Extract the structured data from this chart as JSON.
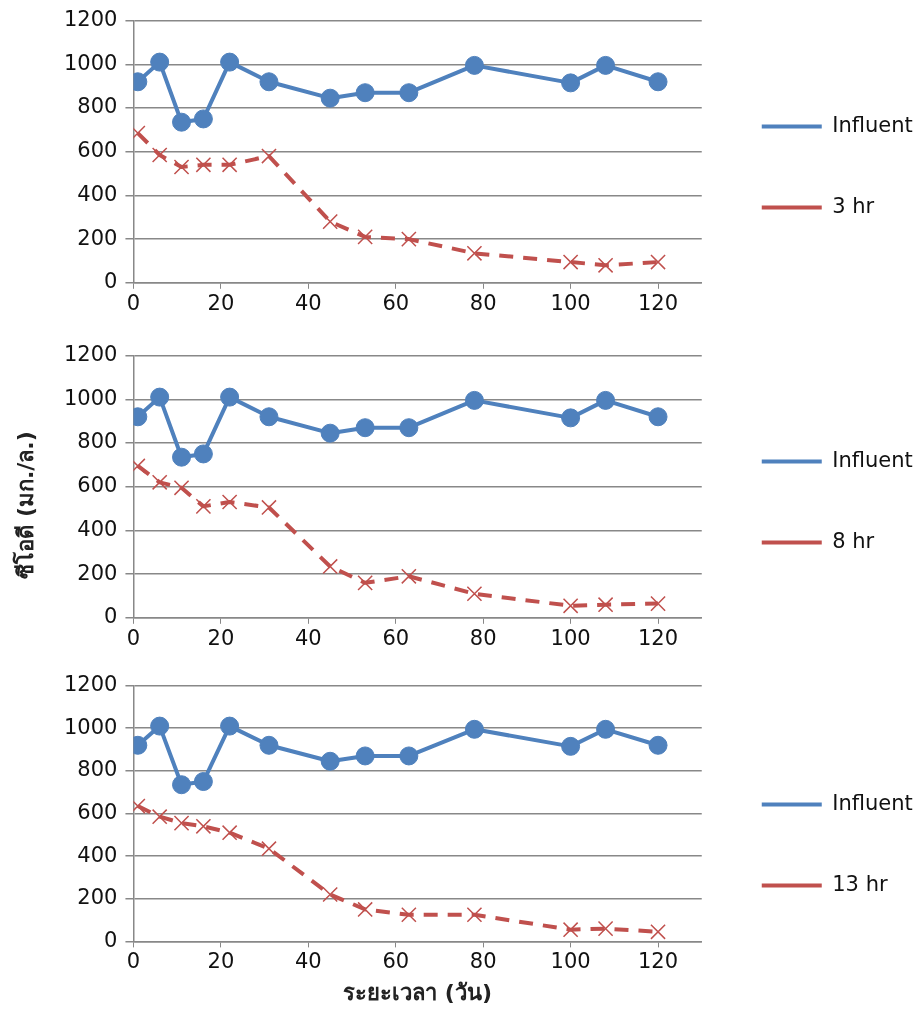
{
  "chart_data": [
    {
      "type": "line",
      "x": [
        1,
        6,
        11,
        16,
        22,
        31,
        45,
        53,
        63,
        78,
        100,
        108,
        120
      ],
      "xlim": [
        0,
        130
      ],
      "xticks": [
        0,
        20,
        40,
        60,
        80,
        100,
        120
      ],
      "ylim": [
        0,
        1200
      ],
      "yticks": [
        0,
        200,
        400,
        600,
        800,
        1000,
        1200
      ],
      "grid": "y",
      "legend": "right",
      "series": [
        {
          "name": "Influent",
          "color": "#4f81bd",
          "marker": "circle",
          "line_style": "solid",
          "values": [
            920,
            1010,
            735,
            750,
            1010,
            920,
            845,
            870,
            870,
            995,
            915,
            995,
            920
          ]
        },
        {
          "name": "3 hr",
          "color": "#c0504d",
          "marker": "cross",
          "line_style": "dashed",
          "values": [
            685,
            585,
            530,
            540,
            540,
            580,
            280,
            210,
            200,
            135,
            95,
            80,
            95
          ]
        }
      ]
    },
    {
      "type": "line",
      "ylabel": "ซีโอดี (มก./ล.)",
      "x": [
        1,
        6,
        11,
        16,
        22,
        31,
        45,
        53,
        63,
        78,
        100,
        108,
        120
      ],
      "xlim": [
        0,
        130
      ],
      "xticks": [
        0,
        20,
        40,
        60,
        80,
        100,
        120
      ],
      "ylim": [
        0,
        1200
      ],
      "yticks": [
        0,
        200,
        400,
        600,
        800,
        1000,
        1200
      ],
      "grid": "y",
      "legend": "right",
      "series": [
        {
          "name": "Influent",
          "color": "#4f81bd",
          "marker": "circle",
          "line_style": "solid",
          "values": [
            920,
            1010,
            735,
            750,
            1010,
            920,
            845,
            870,
            870,
            995,
            915,
            995,
            920
          ]
        },
        {
          "name": "8 hr",
          "color": "#c0504d",
          "marker": "cross",
          "line_style": "dashed",
          "values": [
            695,
            620,
            595,
            510,
            530,
            505,
            235,
            160,
            190,
            110,
            55,
            60,
            65
          ]
        }
      ]
    },
    {
      "type": "line",
      "xlabel": "ระยะเวลา (วัน)",
      "x": [
        1,
        6,
        11,
        16,
        22,
        31,
        45,
        53,
        63,
        78,
        100,
        108,
        120
      ],
      "xlim": [
        0,
        130
      ],
      "xticks": [
        0,
        20,
        40,
        60,
        80,
        100,
        120
      ],
      "ylim": [
        0,
        1200
      ],
      "yticks": [
        0,
        200,
        400,
        600,
        800,
        1000,
        1200
      ],
      "grid": "y",
      "legend": "right",
      "series": [
        {
          "name": "Influent",
          "color": "#4f81bd",
          "marker": "circle",
          "line_style": "solid",
          "values": [
            920,
            1010,
            735,
            750,
            1010,
            920,
            845,
            870,
            870,
            995,
            915,
            995,
            920
          ]
        },
        {
          "name": "13 hr",
          "color": "#c0504d",
          "marker": "cross",
          "line_style": "dashed",
          "values": [
            635,
            585,
            555,
            540,
            510,
            435,
            220,
            150,
            125,
            125,
            55,
            60,
            45
          ]
        }
      ]
    }
  ]
}
